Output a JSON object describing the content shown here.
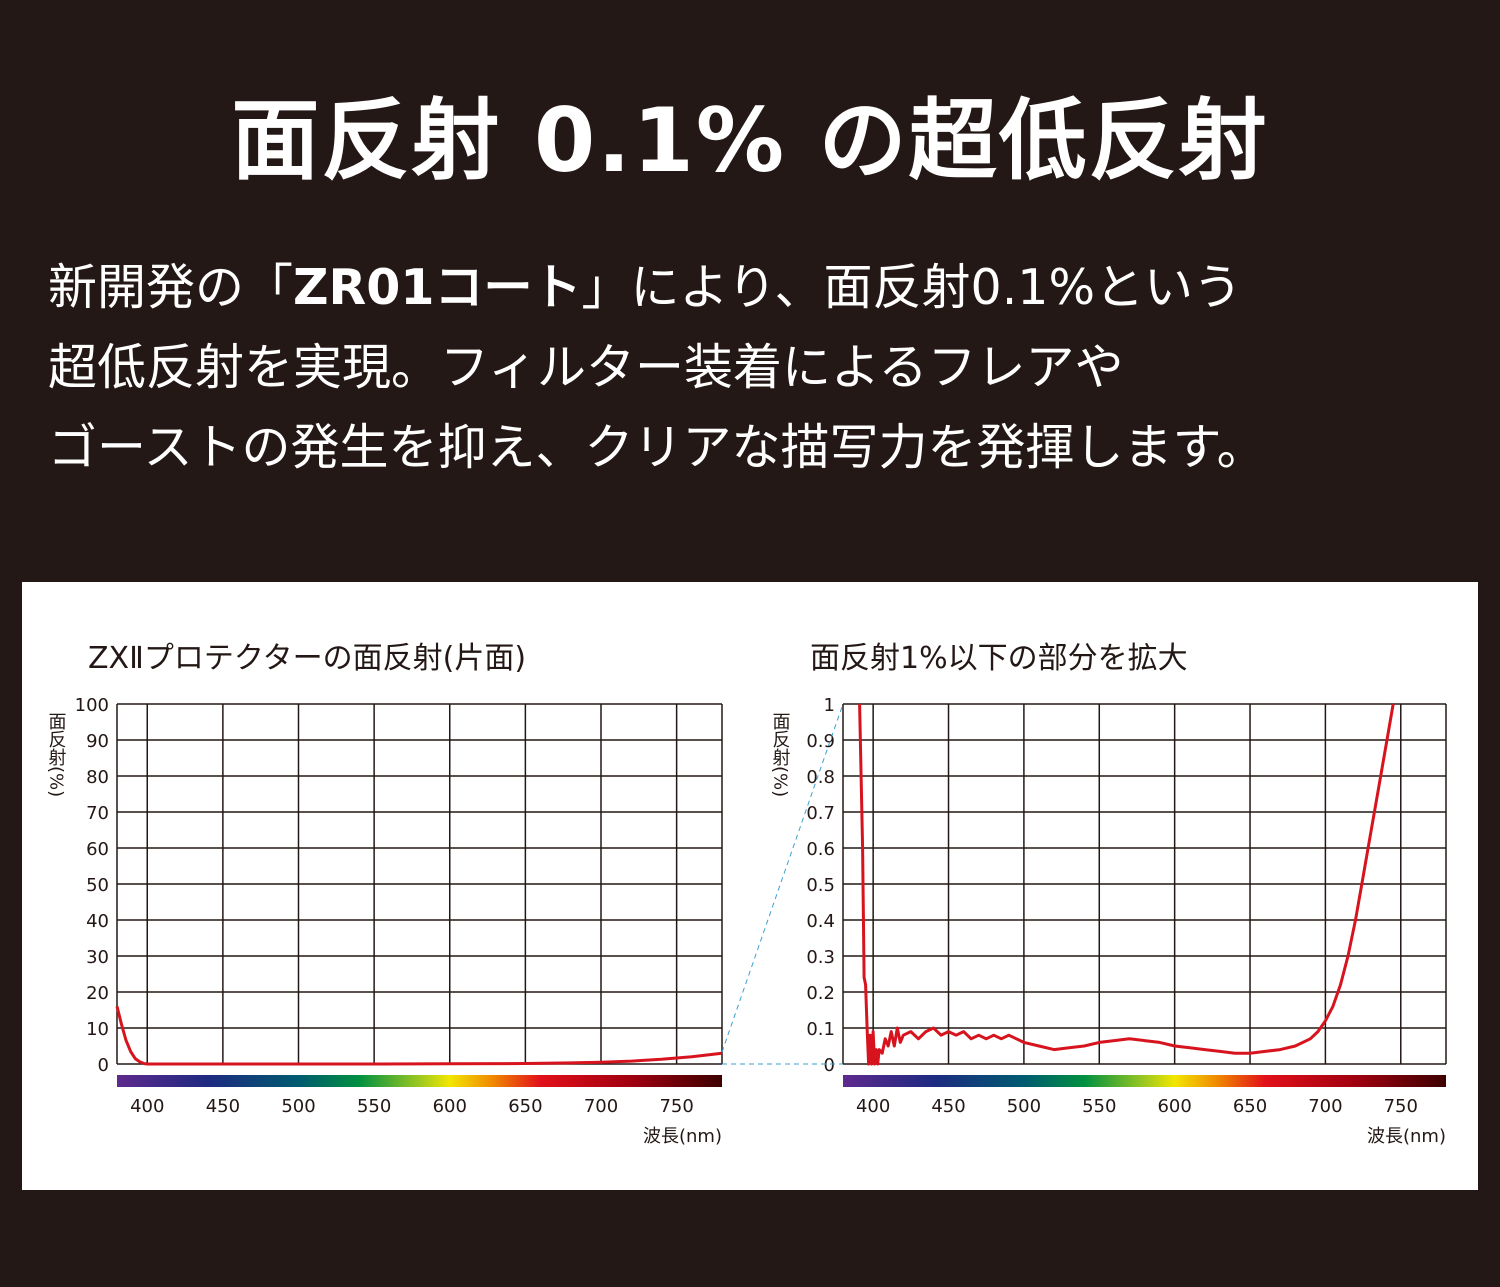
{
  "headline": "面反射 0.1% の超低反射",
  "body": {
    "line1_pre": "新開発の「",
    "line1_bold": "ZR01コート",
    "line1_post": "」により、面反射0.1%という",
    "line2": "超低反射を実現。フィルター装着によるフレアや",
    "line3": "ゴーストの発生を抑え、クリアな描写力を発揮します。"
  },
  "colors": {
    "background": "#231815",
    "curve": "#d7141e",
    "connector": "#3a9fd0",
    "grid": "#231815"
  },
  "chart_data": [
    {
      "type": "line",
      "title": "ZXⅡプロテクターの面反射(片面)",
      "ylabel": "面反射(%)",
      "xlabel": "波長(nm)",
      "xlim": [
        380,
        780
      ],
      "ylim": [
        0,
        100
      ],
      "xticks": [
        400,
        450,
        500,
        550,
        600,
        650,
        700,
        750
      ],
      "yticks": [
        0,
        10,
        20,
        30,
        40,
        50,
        60,
        70,
        80,
        90,
        100
      ],
      "grid": true,
      "spectrum_bar": true,
      "x": [
        380,
        383,
        386,
        389,
        392,
        395,
        398,
        400,
        450,
        500,
        550,
        600,
        650,
        680,
        700,
        720,
        740,
        760,
        780
      ],
      "y": [
        16,
        11,
        6.5,
        3.5,
        1.5,
        0.6,
        0.1,
        0,
        0,
        0,
        0,
        0.05,
        0.15,
        0.3,
        0.5,
        0.8,
        1.3,
        2.0,
        3.0
      ]
    },
    {
      "type": "line",
      "title": "面反射1%以下の部分を拡大",
      "ylabel": "面反射(%)",
      "xlabel": "波長(nm)",
      "xlim": [
        380,
        780
      ],
      "ylim": [
        0,
        1
      ],
      "xticks": [
        400,
        450,
        500,
        550,
        600,
        650,
        700,
        750
      ],
      "yticks": [
        0,
        0.1,
        0.2,
        0.3,
        0.4,
        0.5,
        0.6,
        0.7,
        0.8,
        0.9,
        1
      ],
      "grid": true,
      "spectrum_bar": true,
      "x": [
        391,
        393,
        394,
        395,
        396,
        397,
        398,
        399,
        400,
        401,
        402,
        403,
        404,
        406,
        408,
        410,
        412,
        414,
        416,
        418,
        420,
        425,
        430,
        435,
        440,
        445,
        450,
        455,
        460,
        465,
        470,
        475,
        480,
        485,
        490,
        500,
        510,
        520,
        530,
        540,
        550,
        560,
        570,
        580,
        590,
        600,
        610,
        620,
        630,
        640,
        650,
        660,
        670,
        680,
        690,
        695,
        700,
        705,
        710,
        715,
        720,
        725,
        730,
        735,
        740,
        745
      ],
      "y": [
        1,
        0.6,
        0.24,
        0.22,
        0.1,
        0,
        0.08,
        0,
        0.09,
        0,
        0.04,
        0,
        0.04,
        0.03,
        0.07,
        0.05,
        0.09,
        0.05,
        0.1,
        0.06,
        0.08,
        0.09,
        0.07,
        0.09,
        0.1,
        0.08,
        0.09,
        0.08,
        0.09,
        0.07,
        0.08,
        0.07,
        0.08,
        0.07,
        0.08,
        0.06,
        0.05,
        0.04,
        0.045,
        0.05,
        0.06,
        0.065,
        0.07,
        0.065,
        0.06,
        0.05,
        0.045,
        0.04,
        0.035,
        0.03,
        0.03,
        0.035,
        0.04,
        0.05,
        0.07,
        0.09,
        0.12,
        0.16,
        0.22,
        0.3,
        0.4,
        0.52,
        0.64,
        0.76,
        0.88,
        1
      ]
    }
  ]
}
